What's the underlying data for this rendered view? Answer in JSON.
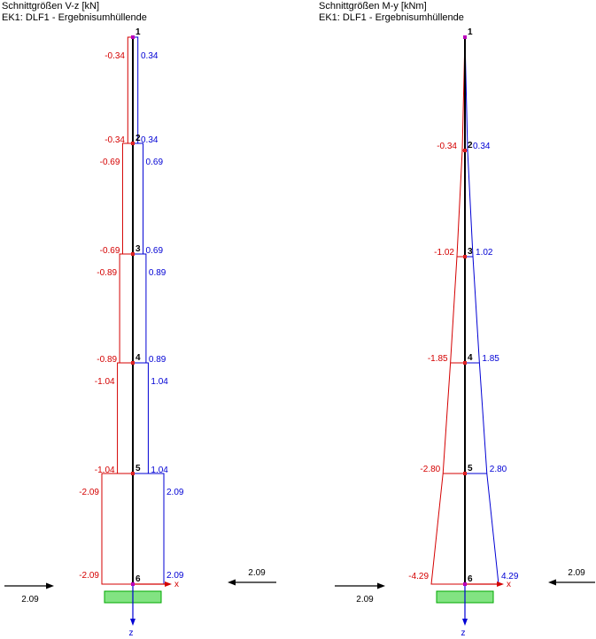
{
  "panels": [
    {
      "title": "Schnittgrößen V-z [kN]",
      "subtitle": "EK1: DLF1 - Ergebnisumhüllende",
      "unit": "kN",
      "diagram": "stepped",
      "node_ids": [
        "1",
        "2",
        "3",
        "4",
        "5",
        "6"
      ],
      "min_segment_values": [
        -0.34,
        -0.69,
        -0.89,
        -1.04,
        -2.09
      ],
      "max_segment_values": [
        0.34,
        0.69,
        0.89,
        1.04,
        2.09
      ],
      "reaction_left": "2.09",
      "reaction_right": "2.09",
      "axis_labels": {
        "x": "x",
        "z": "z"
      }
    },
    {
      "title": "Schnittgrößen M-y [kNm]",
      "subtitle": "EK1: DLF1 - Ergebnisumhüllende",
      "unit": "kNm",
      "diagram": "linear",
      "node_ids": [
        "1",
        "2",
        "3",
        "4",
        "5",
        "6"
      ],
      "min_node_values": [
        0,
        -0.34,
        -1.02,
        -1.85,
        -2.8,
        -4.29
      ],
      "max_node_values": [
        0,
        0.34,
        1.02,
        1.85,
        2.8,
        4.29
      ],
      "reaction_left": "2.09",
      "reaction_right": "2.09",
      "axis_labels": {
        "x": "x",
        "z": "z"
      }
    }
  ],
  "colors": {
    "negative": "#d40000",
    "positive": "#0000d4",
    "member": "#000000",
    "node_end": "#bb00bb",
    "node_mid": "#dd2222",
    "support_fill": "#82e382",
    "support_stroke": "#00a800",
    "axis_x": "#d40000",
    "axis_z": "#0000d4",
    "reaction": "#000000",
    "node_number": "#000000"
  },
  "chart_data": [
    {
      "type": "line",
      "title": "Schnittgrößen V-z [kN]",
      "subtitle": "EK1: DLF1 - Ergebnisumhüllende",
      "orientation": "vertical member, values plotted horizontally",
      "shape": "stepwise-constant envelope",
      "categories": [
        "1-2",
        "2-3",
        "3-4",
        "4-5",
        "5-6"
      ],
      "series": [
        {
          "name": "V-z min [kN]",
          "values": [
            -0.34,
            -0.69,
            -0.89,
            -1.04,
            -2.09
          ]
        },
        {
          "name": "V-z max [kN]",
          "values": [
            0.34,
            0.69,
            0.89,
            1.04,
            2.09
          ]
        }
      ],
      "nodes": [
        1,
        2,
        3,
        4,
        5,
        6
      ],
      "support_reactions": [
        2.09,
        2.09
      ],
      "legend_position": "none",
      "grid": false
    },
    {
      "type": "line",
      "title": "Schnittgrößen M-y [kNm]",
      "subtitle": "EK1: DLF1 - Ergebnisumhüllende",
      "orientation": "vertical member, values plotted horizontally",
      "shape": "piecewise-linear envelope",
      "categories": [
        "1",
        "2",
        "3",
        "4",
        "5",
        "6"
      ],
      "series": [
        {
          "name": "M-y min [kNm]",
          "values": [
            0,
            -0.34,
            -1.02,
            -1.85,
            -2.8,
            -4.29
          ]
        },
        {
          "name": "M-y max [kNm]",
          "values": [
            0,
            0.34,
            1.02,
            1.85,
            2.8,
            4.29
          ]
        }
      ],
      "nodes": [
        1,
        2,
        3,
        4,
        5,
        6
      ],
      "support_reactions": [
        2.09,
        2.09
      ],
      "legend_position": "none",
      "grid": false
    }
  ]
}
